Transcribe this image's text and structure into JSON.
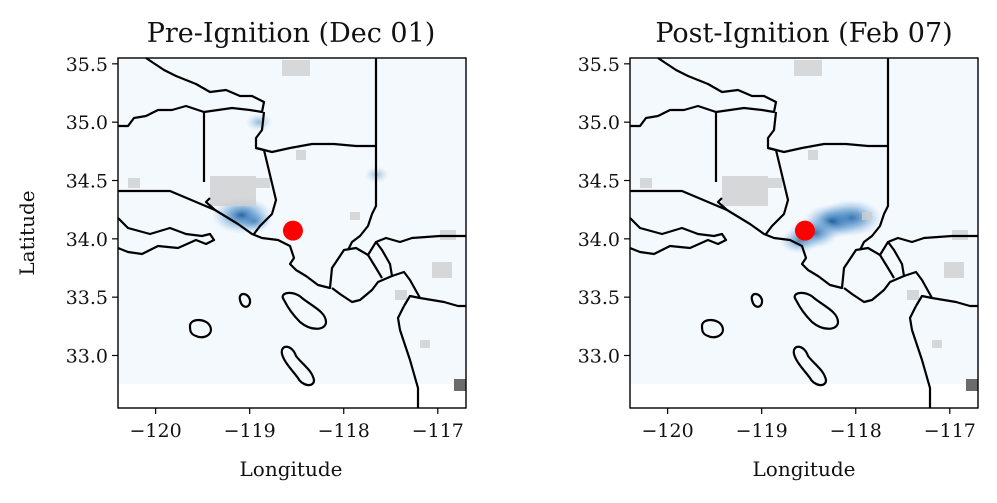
{
  "figure": {
    "panels": [
      {
        "title": "Pre-Ignition (Dec 01)",
        "xlabel": "Longitude",
        "ylabel": "Latitude",
        "xlim": [
          -120.4,
          -116.7
        ],
        "ylim": [
          32.55,
          35.55
        ],
        "xticks": [
          -120,
          -119,
          -118,
          -117
        ],
        "yticks": [
          33.0,
          33.5,
          34.0,
          34.5,
          35.0,
          35.5
        ],
        "xtick_labels": [
          "−120",
          "−119",
          "−118",
          "−117"
        ],
        "ytick_labels": [
          "33.0",
          "33.5",
          "34.0",
          "34.5",
          "35.0",
          "35.5"
        ],
        "ignition_point": {
          "lon": -118.54,
          "lat": 34.07
        },
        "hotspots": [
          {
            "lon": -119.08,
            "lat": 34.2,
            "intensity": 0.95
          },
          {
            "lon": -118.95,
            "lat": 34.15,
            "intensity": 0.35
          },
          {
            "lon": -118.9,
            "lat": 35.0,
            "intensity": 0.18
          },
          {
            "lon": -117.65,
            "lat": 34.55,
            "intensity": 0.12
          }
        ]
      },
      {
        "title": "Post-Ignition (Feb 07)",
        "xlabel": "Longitude",
        "ylabel": "",
        "xlim": [
          -120.4,
          -116.7
        ],
        "ylim": [
          32.55,
          35.55
        ],
        "xticks": [
          -120,
          -119,
          -118,
          -117
        ],
        "yticks": [
          33.0,
          33.5,
          34.0,
          34.5,
          35.0,
          35.5
        ],
        "xtick_labels": [
          "−120",
          "−119",
          "−118",
          "−117"
        ],
        "ytick_labels": [
          "33.0",
          "33.5",
          "34.0",
          "34.5",
          "35.0",
          "35.5"
        ],
        "ignition_point": {
          "lon": -118.54,
          "lat": 34.07
        },
        "hotspots": [
          {
            "lon": -118.05,
            "lat": 34.18,
            "intensity": 0.95
          },
          {
            "lon": -118.25,
            "lat": 34.15,
            "intensity": 0.85
          },
          {
            "lon": -118.45,
            "lat": 34.05,
            "intensity": 0.7
          },
          {
            "lon": -118.6,
            "lat": 33.98,
            "intensity": 0.45
          }
        ]
      }
    ],
    "colors": {
      "sea_background": "#f4f9fe",
      "heat": "#2b6fb0",
      "ignition": "#ff0000",
      "land_patch": "#c8c8c8",
      "outline": "#000000"
    }
  }
}
